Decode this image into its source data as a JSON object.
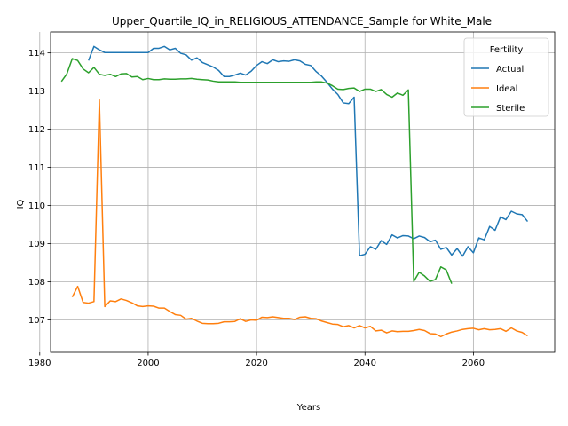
{
  "chart_data": {
    "type": "line",
    "title": "Upper_Quartile_IQ_in_RELIGIOUS_ATTENDANCE_Sample for White_Male",
    "xlabel": "Years",
    "ylabel": "IQ",
    "xlim": [
      1982,
      2075
    ],
    "ylim": [
      106.15,
      114.55
    ],
    "xticks": [
      1980,
      2000,
      2020,
      2040,
      2060
    ],
    "yticks": [
      107,
      108,
      109,
      110,
      111,
      112,
      113,
      114
    ],
    "grid": true,
    "legend": {
      "title": "Fertility",
      "placement": "top-right"
    },
    "series": [
      {
        "name": "Actual",
        "color": "#1f77b4",
        "x": [
          1989,
          1990,
          1991,
          1992,
          1993,
          1994,
          1995,
          1996,
          1997,
          1998,
          1999,
          2000,
          2001,
          2002,
          2003,
          2004,
          2005,
          2006,
          2007,
          2008,
          2009,
          2010,
          2011,
          2012,
          2013,
          2014,
          2015,
          2016,
          2017,
          2018,
          2019,
          2020,
          2021,
          2022,
          2023,
          2024,
          2025,
          2026,
          2027,
          2028,
          2029,
          2030,
          2031,
          2032,
          2033,
          2034,
          2035,
          2036,
          2037,
          2038,
          2039,
          2040,
          2041,
          2042,
          2043,
          2044,
          2045,
          2046,
          2047,
          2048,
          2049,
          2050,
          2051,
          2052,
          2053,
          2054,
          2055,
          2056,
          2057,
          2058,
          2059,
          2060,
          2061,
          2062,
          2063,
          2064,
          2065,
          2066,
          2067,
          2068,
          2069,
          2070
        ],
        "values": [
          113.8,
          114.17,
          114.08,
          114.01,
          114.01,
          114.01,
          114.01,
          114.01,
          114.01,
          114.01,
          114.01,
          114.01,
          114.12,
          114.12,
          114.17,
          114.08,
          114.12,
          113.99,
          113.95,
          113.81,
          113.87,
          113.75,
          113.69,
          113.63,
          113.54,
          113.38,
          113.38,
          113.42,
          113.47,
          113.42,
          113.52,
          113.67,
          113.77,
          113.72,
          113.82,
          113.77,
          113.79,
          113.78,
          113.82,
          113.79,
          113.7,
          113.67,
          113.51,
          113.39,
          113.23,
          113.05,
          112.91,
          112.69,
          112.67,
          112.84,
          108.68,
          108.72,
          108.92,
          108.85,
          109.08,
          108.98,
          109.23,
          109.15,
          109.21,
          109.2,
          109.13,
          109.2,
          109.16,
          109.05,
          109.09,
          108.85,
          108.9,
          108.7,
          108.87,
          108.67,
          108.92,
          108.76,
          109.15,
          109.1,
          109.45,
          109.35,
          109.7,
          109.63,
          109.85,
          109.78,
          109.76,
          109.58
        ]
      },
      {
        "name": "Ideal",
        "color": "#ff7f0e",
        "x": [
          1986,
          1987,
          1988,
          1989,
          1990,
          1991,
          1992,
          1993,
          1994,
          1995,
          1996,
          1997,
          1998,
          1999,
          2000,
          2001,
          2002,
          2003,
          2004,
          2005,
          2006,
          2007,
          2008,
          2009,
          2010,
          2011,
          2012,
          2013,
          2014,
          2015,
          2016,
          2017,
          2018,
          2019,
          2020,
          2021,
          2022,
          2023,
          2024,
          2025,
          2026,
          2027,
          2028,
          2029,
          2030,
          2031,
          2032,
          2033,
          2034,
          2035,
          2036,
          2037,
          2038,
          2039,
          2040,
          2041,
          2042,
          2043,
          2044,
          2045,
          2046,
          2047,
          2048,
          2049,
          2050,
          2051,
          2052,
          2053,
          2054,
          2055,
          2056,
          2057,
          2058,
          2059,
          2060,
          2061,
          2062,
          2063,
          2064,
          2065,
          2066,
          2067,
          2068,
          2069,
          2070
        ],
        "values": [
          107.6,
          107.88,
          107.46,
          107.44,
          107.48,
          112.77,
          107.35,
          107.5,
          107.48,
          107.55,
          107.51,
          107.45,
          107.37,
          107.35,
          107.37,
          107.36,
          107.31,
          107.31,
          107.22,
          107.14,
          107.12,
          107.02,
          107.04,
          106.97,
          106.91,
          106.9,
          106.9,
          106.91,
          106.95,
          106.95,
          106.96,
          107.03,
          106.96,
          107.0,
          106.99,
          107.07,
          107.06,
          107.08,
          107.06,
          107.04,
          107.04,
          107.01,
          107.07,
          107.08,
          107.04,
          107.03,
          106.97,
          106.93,
          106.89,
          106.88,
          106.82,
          106.85,
          106.79,
          106.85,
          106.79,
          106.83,
          106.71,
          106.73,
          106.66,
          106.71,
          106.69,
          106.7,
          106.7,
          106.72,
          106.75,
          106.72,
          106.64,
          106.63,
          106.56,
          106.63,
          106.68,
          106.71,
          106.75,
          106.77,
          106.78,
          106.74,
          106.77,
          106.74,
          106.75,
          106.77,
          106.7,
          106.79,
          106.71,
          106.67,
          106.58
        ]
      },
      {
        "name": "Sterile",
        "color": "#2ca02c",
        "x": [
          1984,
          1985,
          1986,
          1987,
          1988,
          1989,
          1990,
          1991,
          1992,
          1993,
          1994,
          1995,
          1996,
          1997,
          1998,
          1999,
          2000,
          2001,
          2002,
          2003,
          2004,
          2005,
          2006,
          2007,
          2008,
          2009,
          2010,
          2011,
          2012,
          2013,
          2014,
          2015,
          2016,
          2017,
          2018,
          2019,
          2020,
          2021,
          2022,
          2023,
          2024,
          2025,
          2026,
          2027,
          2028,
          2029,
          2030,
          2031,
          2032,
          2033,
          2034,
          2035,
          2036,
          2037,
          2038,
          2039,
          2040,
          2041,
          2042,
          2043,
          2044,
          2045,
          2046,
          2047,
          2048,
          2049,
          2050,
          2051,
          2052,
          2053,
          2054,
          2055,
          2056
        ],
        "values": [
          113.25,
          113.45,
          113.85,
          113.8,
          113.58,
          113.48,
          113.62,
          113.44,
          113.41,
          113.44,
          113.38,
          113.45,
          113.46,
          113.37,
          113.38,
          113.3,
          113.33,
          113.3,
          113.3,
          113.32,
          113.31,
          113.31,
          113.32,
          113.32,
          113.33,
          113.31,
          113.3,
          113.29,
          113.26,
          113.24,
          113.24,
          113.24,
          113.24,
          113.23,
          113.23,
          113.23,
          113.23,
          113.23,
          113.23,
          113.23,
          113.23,
          113.23,
          113.23,
          113.23,
          113.23,
          113.23,
          113.23,
          113.24,
          113.24,
          113.21,
          113.14,
          113.05,
          113.04,
          113.07,
          113.08,
          112.99,
          113.05,
          113.05,
          112.99,
          113.04,
          112.91,
          112.84,
          112.95,
          112.89,
          113.03,
          108.01,
          108.25,
          108.15,
          108.01,
          108.06,
          108.39,
          108.31,
          107.95
        ]
      }
    ]
  }
}
